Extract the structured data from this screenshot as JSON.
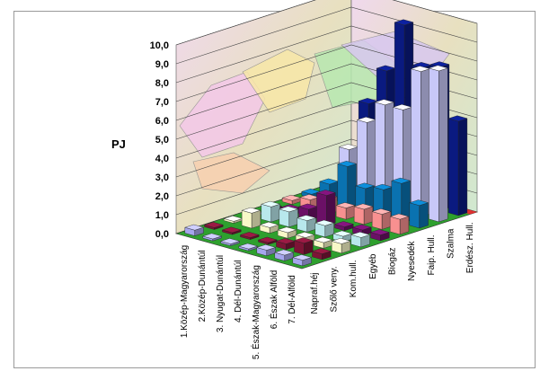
{
  "chart_data": {
    "type": "bar",
    "variant": "3d-grouped",
    "ylabel": "PJ",
    "ylim": [
      0,
      10
    ],
    "ytick_step": 1,
    "grid": true,
    "background_image": "map of Hungary regions on the back walls",
    "yticks": [
      "0,0",
      "1,0",
      "2,0",
      "3,0",
      "4,0",
      "5,0",
      "6,0",
      "7,0",
      "8,0",
      "9,0",
      "10,0"
    ],
    "regions": [
      "1.Közép-Magyarország",
      "2.Közép-Dunántúl",
      "3. Nyugat-Dunántúl",
      "4. Dél-Dunántúl",
      "5. Észak-Magyarország",
      "6. Észak Alföld",
      "7. Dél-Alföld"
    ],
    "sources": [
      "Napraf.héj",
      "Szőlő veny.",
      "Kom.hull.",
      "Egyéb",
      "Biogáz",
      "Nyesedék",
      "Faip. Hull.",
      "Szalma",
      "Erdész. Hull."
    ],
    "colors": [
      "#a6a6ee",
      "#7d1436",
      "#f8f8c8",
      "#b8e8ec",
      "#6b1066",
      "#f89090",
      "#0a72b0",
      "#c8c8f8",
      "#0a1a80"
    ],
    "values": [
      [
        0.3,
        0.1,
        0.1,
        0.1,
        0.1,
        0.2,
        0.2,
        0.3,
        0.2
      ],
      [
        0.1,
        0.1,
        0.8,
        0.8,
        0.3,
        0.5,
        1.0,
        2.5,
        4.6
      ],
      [
        0.1,
        0.1,
        0.3,
        0.8,
        0.6,
        0.8,
        2.2,
        4.2,
        6.6
      ],
      [
        0.1,
        0.1,
        0.3,
        0.6,
        1.6,
        0.6,
        1.3,
        5.4,
        9.3
      ],
      [
        0.3,
        0.3,
        0.3,
        0.6,
        0.2,
        0.8,
        1.5,
        5.4,
        7.3
      ],
      [
        0.3,
        0.6,
        0.3,
        0.3,
        0.3,
        0.8,
        2.1,
        7.7,
        7.6
      ],
      [
        0.3,
        0.3,
        0.5,
        0.5,
        0.3,
        0.8,
        1.2,
        8.0,
        5.0
      ]
    ]
  }
}
